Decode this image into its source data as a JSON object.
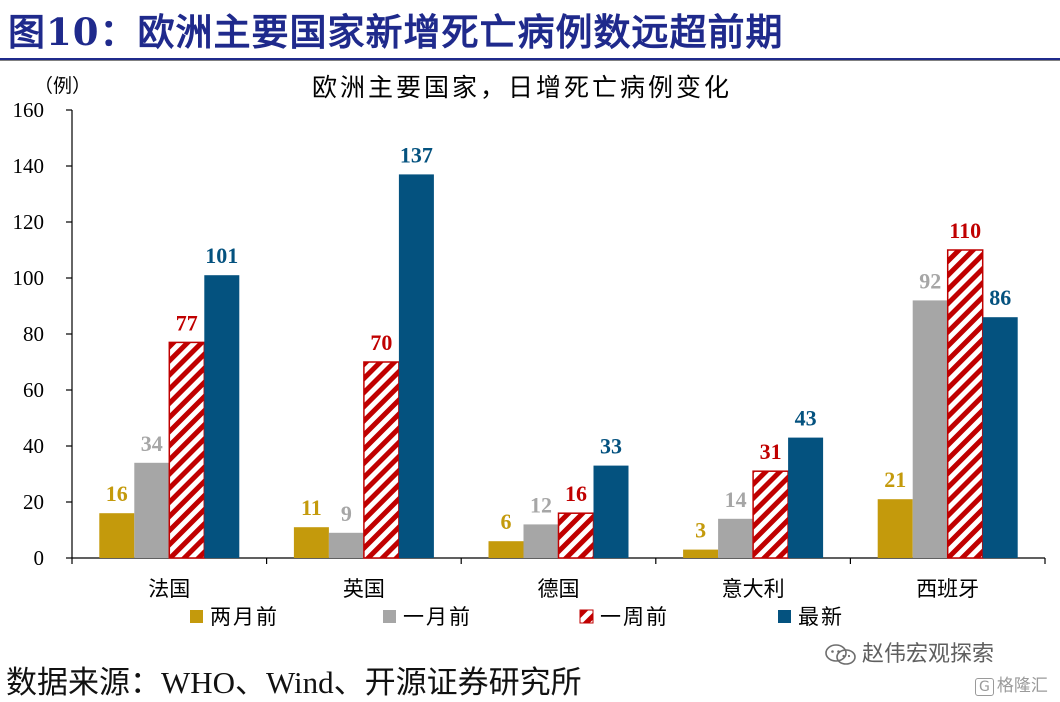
{
  "figure": {
    "title": "图10：欧洲主要国家新增死亡病例数远超前期",
    "source": "数据来源：WHO、Wind、开源证券研究所"
  },
  "watermark": {
    "text": "赵伟宏观探索",
    "icon": "wechat-icon"
  },
  "badge": {
    "text": "格隆汇",
    "icon": "g-logo-icon",
    "letter": "G"
  },
  "chart_data": {
    "type": "bar",
    "title": "欧洲主要国家，日增死亡病例变化",
    "ylabel": "（例）",
    "xlabel": "",
    "ylim": [
      0,
      160
    ],
    "yticks": [
      0,
      20,
      40,
      60,
      80,
      100,
      120,
      140,
      160
    ],
    "categories": [
      "法国",
      "英国",
      "德国",
      "意大利",
      "西班牙"
    ],
    "series": [
      {
        "name": "两月前",
        "values": [
          16,
          11,
          6,
          3,
          21
        ],
        "color": "#c49a0c",
        "label_color": "#c49a0c",
        "pattern": "solid"
      },
      {
        "name": "一月前",
        "values": [
          34,
          9,
          12,
          14,
          92
        ],
        "color": "#a6a6a6",
        "label_color": "#a6a6a6",
        "pattern": "solid"
      },
      {
        "name": "一周前",
        "values": [
          77,
          70,
          16,
          31,
          110
        ],
        "color": "#c00000",
        "label_color": "#c00000",
        "pattern": "diagonal-hatch"
      },
      {
        "name": "最新",
        "values": [
          101,
          137,
          33,
          43,
          86
        ],
        "color": "#04527f",
        "label_color": "#04527f",
        "pattern": "solid"
      }
    ],
    "legend_position": "bottom",
    "grid": false,
    "data_labels": true
  }
}
